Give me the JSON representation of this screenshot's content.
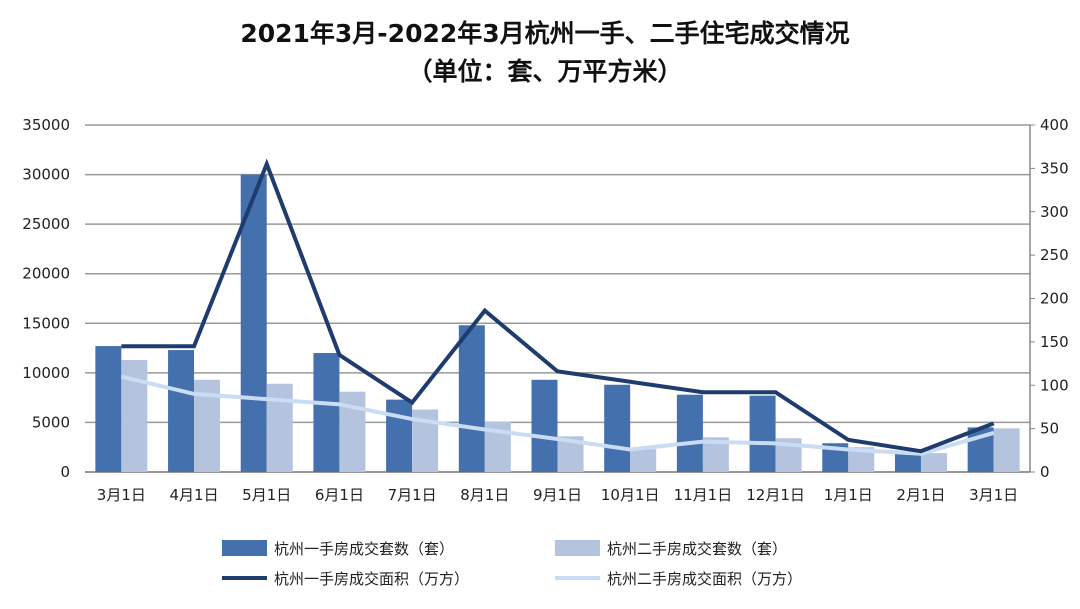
{
  "chart_data": {
    "type": "bar",
    "title": "2021年3月-2022年3月杭州一手、二手住宅成交情况",
    "subtitle": "（单位：套、万平方米）",
    "categories": [
      "3月1日",
      "4月1日",
      "5月1日",
      "6月1日",
      "7月1日",
      "8月1日",
      "9月1日",
      "10月1日",
      "11月1日",
      "12月1日",
      "1月1日",
      "2月1日",
      "3月1日"
    ],
    "y_left": {
      "range": [
        0,
        35000
      ],
      "ticks": [
        0,
        5000,
        10000,
        15000,
        20000,
        25000,
        30000,
        35000
      ]
    },
    "y_right": {
      "range": [
        0,
        400
      ],
      "ticks": [
        0,
        50,
        100,
        150,
        200,
        250,
        300,
        350,
        400
      ]
    },
    "grid": true,
    "legend_position": "bottom",
    "series": [
      {
        "name": "杭州一手房成交套数（套）",
        "type": "bar",
        "axis": "left",
        "color": "#4470ad",
        "values": [
          12700,
          12300,
          30000,
          12000,
          7300,
          14800,
          9300,
          8800,
          7800,
          7700,
          2900,
          1900,
          4500
        ]
      },
      {
        "name": "杭州二手房成交套数（套）",
        "type": "bar",
        "axis": "left",
        "color": "#b4c3de",
        "values": [
          11300,
          9300,
          8900,
          8100,
          6300,
          5100,
          3600,
          2300,
          3500,
          3400,
          2500,
          1900,
          4400
        ]
      },
      {
        "name": "杭州一手房成交面积（万方）",
        "type": "line",
        "axis": "right",
        "color": "#1f3c6e",
        "values": [
          145,
          145,
          355,
          135,
          80,
          186,
          116,
          104,
          92,
          92,
          37,
          24,
          56
        ]
      },
      {
        "name": "杭州二手房成交面积（万方）",
        "type": "line",
        "axis": "right",
        "color": "#c9dcf3",
        "values": [
          110,
          90,
          84,
          78,
          61,
          49,
          38,
          26,
          35,
          33,
          26,
          21,
          45
        ]
      }
    ]
  }
}
